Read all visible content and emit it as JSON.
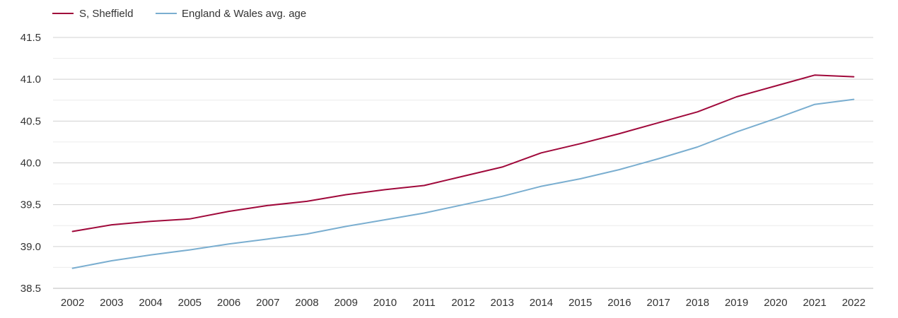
{
  "chart_data": {
    "type": "line",
    "title": "",
    "xlabel": "",
    "ylabel": "",
    "x": [
      "2002",
      "2003",
      "2004",
      "2005",
      "2006",
      "2007",
      "2008",
      "2009",
      "2010",
      "2011",
      "2012",
      "2013",
      "2014",
      "2015",
      "2016",
      "2017",
      "2018",
      "2019",
      "2020",
      "2021",
      "2022"
    ],
    "ylim": [
      38.5,
      41.5
    ],
    "yticks": [
      "38.5",
      "39.0",
      "39.5",
      "40.0",
      "40.5",
      "41.0",
      "41.5"
    ],
    "grid": true,
    "legend_position": "top-left",
    "series": [
      {
        "name": "S, Sheffield",
        "color": "#a0093b",
        "values": [
          39.18,
          39.26,
          39.3,
          39.33,
          39.42,
          39.49,
          39.54,
          39.62,
          39.68,
          39.73,
          39.84,
          39.95,
          40.12,
          40.23,
          40.35,
          40.48,
          40.61,
          40.79,
          40.92,
          41.05,
          41.03
        ]
      },
      {
        "name": "England & Wales avg. age",
        "color": "#7aaed0",
        "values": [
          38.74,
          38.83,
          38.9,
          38.96,
          39.03,
          39.09,
          39.15,
          39.24,
          39.32,
          39.4,
          39.5,
          39.6,
          39.72,
          39.81,
          39.92,
          40.05,
          40.19,
          40.37,
          40.53,
          40.7,
          40.76
        ]
      }
    ]
  }
}
